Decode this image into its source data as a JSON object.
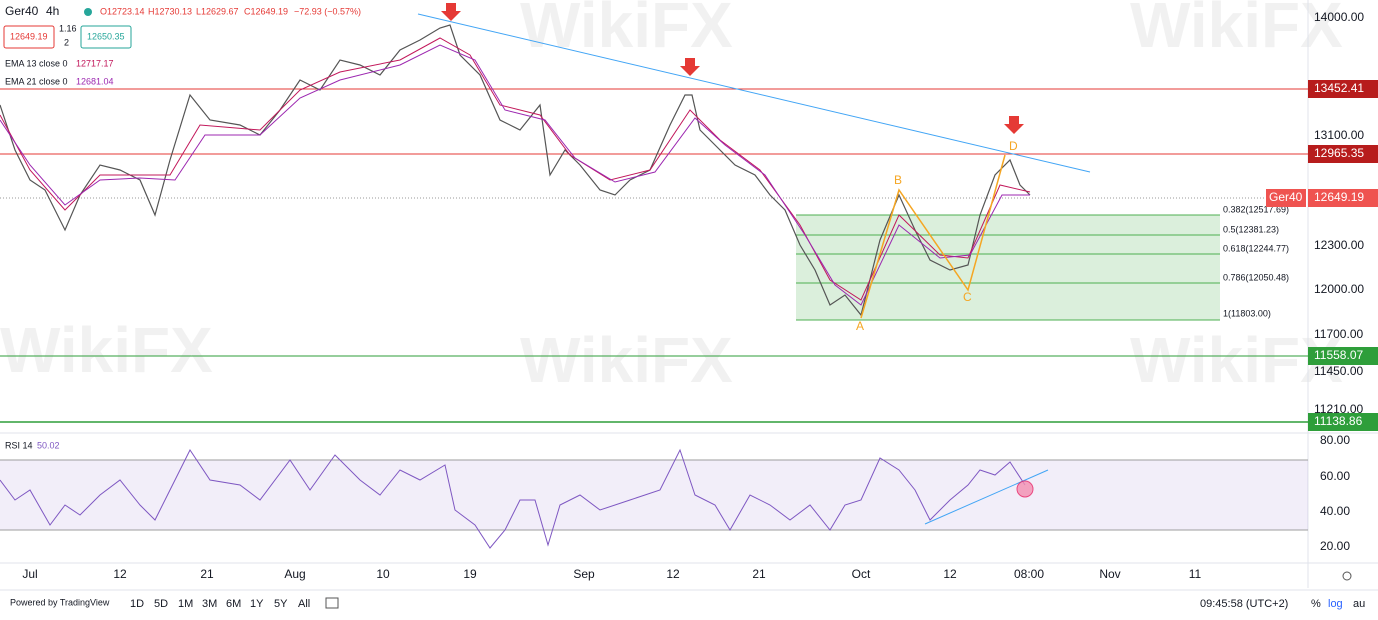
{
  "header": {
    "symbol": "Ger40",
    "timeframe": "4h",
    "open": "O12723.14",
    "high": "H12730.13",
    "low": "L12629.67",
    "close": "C12649.19",
    "change": "−72.93 (−0.57%)",
    "bid": "12649.19",
    "spread": "1.16",
    "spread_unit": "2",
    "ask": "12650.35"
  },
  "indicators": [
    {
      "label": "EMA 13 close 0",
      "value": "12717.17"
    },
    {
      "label": "EMA 21 close 0",
      "value": "12681.04"
    }
  ],
  "price_axis": [
    "14000.00",
    "13100.00",
    "12300.00",
    "12000.00",
    "11700.00",
    "11450.00",
    "11210.00"
  ],
  "price_tags": [
    "13452.41",
    "12965.35",
    "12649.19",
    "11558.07",
    "11138.86"
  ],
  "current_symbol": "Ger40",
  "fib_levels": [
    "0.382(12517.69)",
    "0.5(12381.23)",
    "0.618(12244.77)",
    "0.786(12050.48)",
    "1(11803.00)"
  ],
  "pattern_points": [
    "A",
    "B",
    "C",
    "D"
  ],
  "rsi": {
    "label": "RSI 14",
    "value": "50.02",
    "axis": [
      "80.00",
      "60.00",
      "40.00",
      "20.00"
    ]
  },
  "time_axis": [
    "Jul",
    "12",
    "21",
    "Aug",
    "10",
    "19",
    "Sep",
    "12",
    "21",
    "Oct",
    "12",
    "08:00",
    "Nov",
    "11"
  ],
  "footer": {
    "powered": "Powered by TradingView",
    "ranges": [
      "1D",
      "5D",
      "1M",
      "3M",
      "6M",
      "1Y",
      "5Y",
      "All"
    ],
    "clock": "09:45:58 (UTC+2)",
    "percent": "%",
    "log": "log",
    "auto": "au"
  },
  "watermark": "WikiFX"
}
